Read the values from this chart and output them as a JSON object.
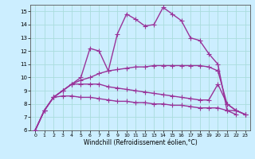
{
  "background_color": "#cceeff",
  "grid_color": "#aadddd",
  "line_color": "#993399",
  "marker": "+",
  "markersize": 4,
  "linewidth": 1.0,
  "xlim": [
    -0.5,
    23.5
  ],
  "ylim": [
    6,
    15.5
  ],
  "yticks": [
    6,
    7,
    8,
    9,
    10,
    11,
    12,
    13,
    14,
    15
  ],
  "xticks": [
    0,
    1,
    2,
    3,
    4,
    5,
    6,
    7,
    8,
    9,
    10,
    11,
    12,
    13,
    14,
    15,
    16,
    17,
    18,
    19,
    20,
    21,
    22,
    23
  ],
  "xlabel": "Windchill (Refroidissement éolien,°C)",
  "series": [
    [
      6.0,
      7.5,
      8.5,
      8.6,
      8.6,
      8.5,
      8.5,
      8.4,
      8.3,
      8.2,
      8.2,
      8.1,
      8.1,
      8.0,
      8.0,
      7.9,
      7.9,
      7.8,
      7.7,
      7.7,
      7.7,
      7.5,
      7.5,
      7.2
    ],
    [
      6.0,
      7.5,
      8.5,
      9.0,
      9.5,
      9.5,
      9.5,
      9.5,
      9.3,
      9.2,
      9.1,
      9.0,
      8.9,
      8.8,
      8.7,
      8.6,
      8.5,
      8.4,
      8.3,
      8.3,
      9.5,
      8.0,
      7.5,
      7.2
    ],
    [
      6.0,
      7.5,
      8.5,
      9.0,
      9.5,
      9.8,
      10.0,
      10.3,
      10.5,
      10.6,
      10.7,
      10.8,
      10.8,
      10.9,
      10.9,
      10.9,
      10.9,
      10.9,
      10.9,
      10.8,
      10.5,
      8.0,
      7.5,
      7.2
    ],
    [
      6.0,
      7.5,
      8.5,
      9.0,
      9.5,
      10.0,
      12.2,
      12.0,
      10.5,
      13.3,
      14.8,
      14.4,
      13.9,
      14.0,
      15.3,
      14.8,
      14.3,
      13.0,
      12.8,
      11.8,
      11.0,
      7.5,
      7.2,
      null
    ]
  ]
}
